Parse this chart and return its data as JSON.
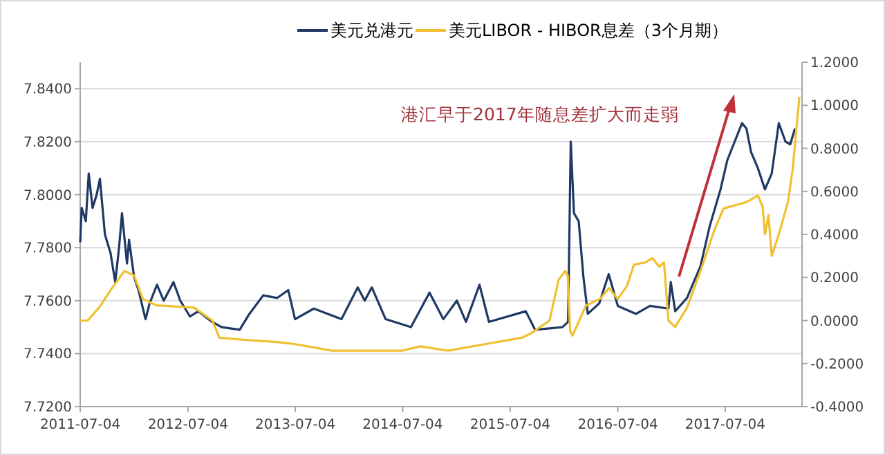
{
  "chart_data": {
    "type": "line",
    "legend": "top",
    "grid": "y",
    "annotations": [
      "港汇早于2017年随息差扩大而走弱"
    ],
    "xlim": [
      "2011-07-04",
      "2018-03-22"
    ],
    "xticks": [
      "2011-07-04",
      "2012-07-04",
      "2013-07-04",
      "2014-07-04",
      "2015-07-04",
      "2016-07-04",
      "2017-07-04"
    ],
    "ylim": [
      7.72,
      7.85
    ],
    "yticks": [
      {
        "value": 7.72,
        "label": "7.7200"
      },
      {
        "value": 7.74,
        "label": "7.7400"
      },
      {
        "value": 7.76,
        "label": "7.7600"
      },
      {
        "value": 7.78,
        "label": "7.7800"
      },
      {
        "value": 7.8,
        "label": "7.8000"
      },
      {
        "value": 7.82,
        "label": "7.8200"
      },
      {
        "value": 7.84,
        "label": "7.8400"
      }
    ],
    "y2lim": [
      -0.4,
      1.2
    ],
    "y2ticks": [
      {
        "value": -0.4,
        "label": "-0.4000"
      },
      {
        "value": -0.2,
        "label": "-0.2000"
      },
      {
        "value": 0,
        "label": "0.0000"
      },
      {
        "value": 0.2,
        "label": "0.2000"
      },
      {
        "value": 0.4,
        "label": "0.4000"
      },
      {
        "value": 0.6,
        "label": "0.6000"
      },
      {
        "value": 0.8,
        "label": "0.8000"
      },
      {
        "value": 1,
        "label": "1.0000"
      },
      {
        "value": 1.2,
        "label": "1.2000"
      }
    ],
    "series": [
      {
        "name": "美元兑港元",
        "color": "#1f3864",
        "x": [
          "2011-07-04",
          "2011-07-09",
          "2011-07-23",
          "2011-08-02",
          "2011-08-15",
          "2011-08-29",
          "2011-09-09",
          "2011-09-26",
          "2011-10-15",
          "2011-10-31",
          "2011-11-13",
          "2011-11-23",
          "2011-12-10",
          "2011-12-17",
          "2012-01-03",
          "2012-01-18",
          "2012-02-11",
          "2012-02-25",
          "2012-03-21",
          "2012-04-13",
          "2012-05-16",
          "2012-06-08",
          "2012-07-11",
          "2012-08-08",
          "2012-09-24",
          "2012-10-27",
          "2012-12-27",
          "2013-01-29",
          "2013-03-17",
          "2013-05-03",
          "2013-06-10",
          "2013-07-03",
          "2013-09-05",
          "2013-12-08",
          "2014-02-01",
          "2014-02-25",
          "2014-03-21",
          "2014-05-07",
          "2014-08-01",
          "2014-10-03",
          "2014-11-19",
          "2015-01-04",
          "2015-02-04",
          "2015-03-22",
          "2015-04-23",
          "2015-08-26",
          "2015-09-27",
          "2015-12-29",
          "2016-01-17",
          "2016-01-26",
          "2016-02-06",
          "2016-02-22",
          "2016-03-09",
          "2016-03-24",
          "2016-05-02",
          "2016-06-03",
          "2016-07-04",
          "2016-09-04",
          "2016-10-21",
          "2016-12-23",
          "2016-12-31",
          "2017-01-15",
          "2017-02-24",
          "2017-04-11",
          "2017-05-12",
          "2017-06-18",
          "2017-07-11",
          "2017-08-30",
          "2017-09-14",
          "2017-09-30",
          "2017-10-23",
          "2017-11-16",
          "2017-12-09",
          "2018-01-02",
          "2018-01-25",
          "2018-02-10",
          "2018-02-26"
        ],
        "values": [
          7.782,
          7.795,
          7.79,
          7.808,
          7.795,
          7.8,
          7.806,
          7.785,
          7.778,
          7.767,
          7.78,
          7.793,
          7.774,
          7.783,
          7.769,
          7.764,
          7.753,
          7.759,
          7.766,
          7.76,
          7.767,
          7.76,
          7.754,
          7.756,
          7.752,
          7.75,
          7.749,
          7.755,
          7.762,
          7.761,
          7.764,
          7.753,
          7.757,
          7.753,
          7.765,
          7.76,
          7.765,
          7.753,
          7.75,
          7.763,
          7.753,
          7.76,
          7.752,
          7.766,
          7.752,
          7.756,
          7.749,
          7.75,
          7.752,
          7.82,
          7.793,
          7.79,
          7.769,
          7.755,
          7.759,
          7.77,
          7.758,
          7.755,
          7.758,
          7.757,
          7.767,
          7.756,
          7.761,
          7.773,
          7.788,
          7.802,
          7.813,
          7.827,
          7.825,
          7.816,
          7.81,
          7.802,
          7.808,
          7.827,
          7.82,
          7.819,
          7.825
        ]
      },
      {
        "name": "美元LIBOR - HIBOR息差（3个月期）",
        "color": "#f0c030",
        "axis": "y2",
        "x": [
          "2011-07-04",
          "2011-07-29",
          "2011-09-06",
          "2011-10-15",
          "2011-12-01",
          "2012-01-03",
          "2012-02-02",
          "2012-03-20",
          "2012-07-25",
          "2012-09-25",
          "2012-10-19",
          "2013-01-13",
          "2013-05-03",
          "2013-07-04",
          "2013-11-06",
          "2014-07-01",
          "2014-09-02",
          "2014-12-05",
          "2015-04-09",
          "2015-08-13",
          "2015-09-13",
          "2015-11-15",
          "2015-12-16",
          "2016-01-07",
          "2016-01-16",
          "2016-01-24",
          "2016-02-01",
          "2016-03-18",
          "2016-05-04",
          "2016-06-04",
          "2016-07-04",
          "2016-08-04",
          "2016-08-28",
          "2016-10-06",
          "2016-10-29",
          "2016-11-22",
          "2016-12-08",
          "2016-12-23",
          "2017-01-15",
          "2017-02-24",
          "2017-04-11",
          "2017-05-28",
          "2017-06-28",
          "2017-09-14",
          "2017-10-23",
          "2017-11-08",
          "2017-11-16",
          "2017-11-28",
          "2017-12-09",
          "2018-01-02",
          "2018-02-02",
          "2018-02-18",
          "2018-03-13"
        ],
        "values": [
          0,
          0,
          0.06,
          0.14,
          0.23,
          0.21,
          0.1,
          0.07,
          0.06,
          0,
          -0.08,
          -0.09,
          -0.1,
          -0.11,
          -0.14,
          -0.14,
          -0.12,
          -0.14,
          -0.11,
          -0.08,
          -0.06,
          0,
          0.19,
          0.23,
          0.21,
          -0.05,
          -0.07,
          0.07,
          0.1,
          0.15,
          0.1,
          0.16,
          0.26,
          0.27,
          0.29,
          0.25,
          0.27,
          0,
          -0.03,
          0.06,
          0.23,
          0.42,
          0.52,
          0.55,
          0.58,
          0.53,
          0.4,
          0.49,
          0.3,
          0.4,
          0.55,
          0.7,
          1.04
        ]
      }
    ]
  }
}
